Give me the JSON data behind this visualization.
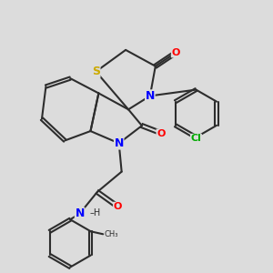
{
  "background_color": "#dcdcdc",
  "bond_color": "#2d2d2d",
  "bond_width": 1.5,
  "atom_colors": {
    "N": "#0000ff",
    "O": "#ff0000",
    "S": "#ccaa00",
    "Cl": "#00aa00",
    "C": "#2d2d2d",
    "H": "#2d2d2d"
  },
  "figsize": [
    3.0,
    3.0
  ],
  "dpi": 100,
  "afs": 8
}
